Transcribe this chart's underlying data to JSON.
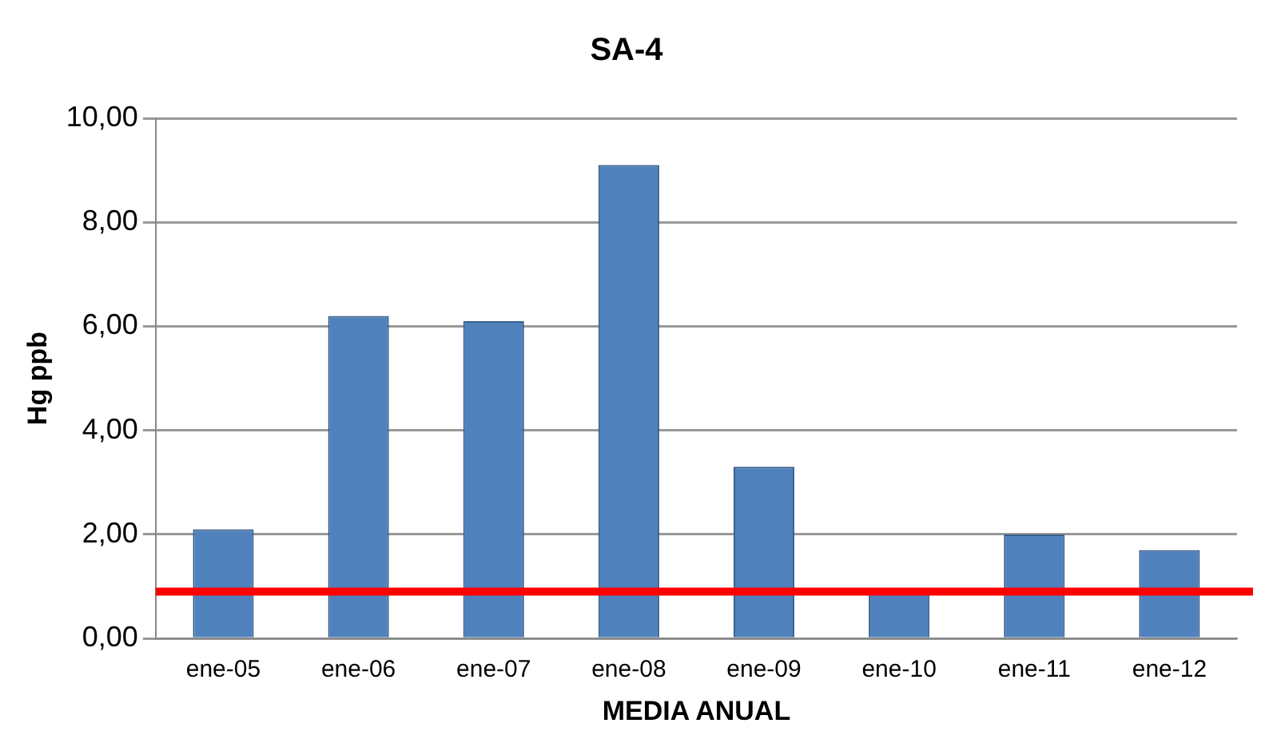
{
  "chart_data": {
    "type": "bar",
    "title": "SA-4",
    "xlabel": "MEDIA ANUAL",
    "ylabel": "Hg ppb",
    "categories": [
      "ene-05",
      "ene-06",
      "ene-07",
      "ene-08",
      "ene-09",
      "ene-10",
      "ene-11",
      "ene-12"
    ],
    "values": [
      2.1,
      6.2,
      6.1,
      9.1,
      3.3,
      0.9,
      2.0,
      1.7
    ],
    "color": "#4f81bd",
    "ylim": [
      0,
      10
    ],
    "yticks": [
      {
        "value": 0,
        "label": "0,00"
      },
      {
        "value": 2,
        "label": "2,00"
      },
      {
        "value": 4,
        "label": "4,00"
      },
      {
        "value": 6,
        "label": "6,00"
      },
      {
        "value": 8,
        "label": "8,00"
      },
      {
        "value": 10,
        "label": "10,00"
      }
    ],
    "grid": "y",
    "legend": false,
    "ref_lines": [
      {
        "axis": "y",
        "value": 0.9,
        "color": "#ff0000"
      }
    ]
  }
}
